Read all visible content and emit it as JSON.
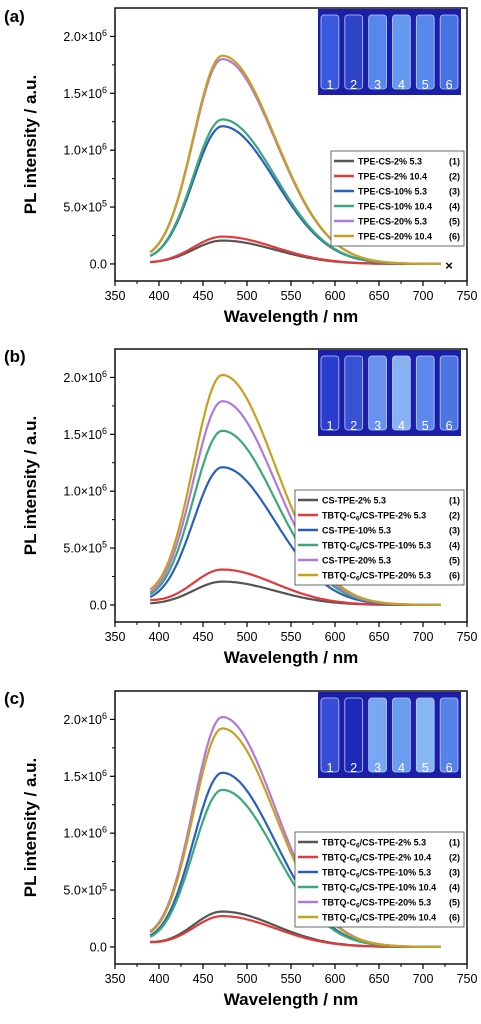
{
  "chart_data": [
    {
      "type": "line",
      "panel_label": "(a)",
      "xlabel": "Wavelength / nm",
      "ylabel": "PL intensity / a.u.",
      "xlim": [
        350,
        750
      ],
      "ylim": [
        -150000,
        2250000
      ],
      "x_ticks": [
        "350",
        "400",
        "450",
        "500",
        "550",
        "600",
        "650",
        "700",
        "750"
      ],
      "y_ticks": [
        {
          "value": 0,
          "label": "0.0"
        },
        {
          "value": 500000,
          "label": "5.0x10^5"
        },
        {
          "value": 1000000,
          "label": "1.0x10^6"
        },
        {
          "value": 1500000,
          "label": "1.5x10^6"
        },
        {
          "value": 2000000,
          "label": "2.0x10^6"
        }
      ],
      "inset_labels": [
        "1",
        "2",
        "3",
        "4",
        "5",
        "6"
      ],
      "annotation": "×",
      "series": [
        {
          "name": "TPE-CS-2% 5.3",
          "index": "(1)",
          "color": "#555555",
          "peak": 205000,
          "base": 8000
        },
        {
          "name": "TPE-CS-2% 10.4",
          "index": "(2)",
          "color": "#e03a3a",
          "peak": 240000,
          "base": 4000
        },
        {
          "name": "TPE-CS-10% 5.3",
          "index": "(3)",
          "color": "#2b5fbd",
          "peak": 1210000,
          "base": 15000
        },
        {
          "name": "TPE-CS-10% 10.4",
          "index": "(4)",
          "color": "#3aa87a",
          "peak": 1270000,
          "base": 12000
        },
        {
          "name": "TPE-CS-20% 5.3",
          "index": "(5)",
          "color": "#b07ad8",
          "peak": 1800000,
          "base": 20000
        },
        {
          "name": "TPE-CS-20% 10.4",
          "index": "(6)",
          "color": "#c8a020",
          "peak": 1830000,
          "base": 22000
        }
      ]
    },
    {
      "type": "line",
      "panel_label": "(b)",
      "xlabel": "Wavelength / nm",
      "ylabel": "PL intensity / a.u.",
      "xlim": [
        350,
        750
      ],
      "ylim": [
        -150000,
        2250000
      ],
      "x_ticks": [
        "350",
        "400",
        "450",
        "500",
        "550",
        "600",
        "650",
        "700",
        "750"
      ],
      "y_ticks": [
        {
          "value": 0,
          "label": "0.0"
        },
        {
          "value": 500000,
          "label": "5.0x10^5"
        },
        {
          "value": 1000000,
          "label": "1.0x10^6"
        },
        {
          "value": 1500000,
          "label": "1.5x10^6"
        },
        {
          "value": 2000000,
          "label": "2.0x10^6"
        }
      ],
      "inset_labels": [
        "1",
        "2",
        "3",
        "4",
        "5",
        "6"
      ],
      "series": [
        {
          "name": "CS-TPE-2% 5.3",
          "index": "(1)",
          "color": "#555555",
          "peak": 205000,
          "base": 5000
        },
        {
          "name": "TBTQ-C6/CS-TPE-2% 5.3",
          "index": "(2)",
          "color": "#e03a3a",
          "peak": 310000,
          "base": 30000
        },
        {
          "name": "CS-TPE-10% 5.3",
          "index": "(3)",
          "color": "#2b5fbd",
          "peak": 1210000,
          "base": 15000
        },
        {
          "name": "TBTQ-C6/CS-TPE-10% 5.3",
          "index": "(4)",
          "color": "#3aa87a",
          "peak": 1530000,
          "base": 25000
        },
        {
          "name": "CS-TPE-20% 5.3",
          "index": "(5)",
          "color": "#b07ad8",
          "peak": 1790000,
          "base": 30000
        },
        {
          "name": "TBTQ-C6/CS-TPE-20% 5.3",
          "index": "(6)",
          "color": "#c8a020",
          "peak": 2020000,
          "base": 45000
        }
      ]
    },
    {
      "type": "line",
      "panel_label": "(c)",
      "xlabel": "Wavelength / nm",
      "ylabel": "PL intensity / a.u.",
      "xlim": [
        350,
        750
      ],
      "ylim": [
        -150000,
        2250000
      ],
      "x_ticks": [
        "350",
        "400",
        "450",
        "500",
        "550",
        "600",
        "650",
        "700",
        "750"
      ],
      "y_ticks": [
        {
          "value": 0,
          "label": "0.0"
        },
        {
          "value": 500000,
          "label": "5.0x10^5"
        },
        {
          "value": 1000000,
          "label": "1.0x10^6"
        },
        {
          "value": 1500000,
          "label": "1.5x10^6"
        },
        {
          "value": 2000000,
          "label": "2.0x10^6"
        }
      ],
      "inset_labels": [
        "1",
        "2",
        "3",
        "4",
        "5",
        "6"
      ],
      "series": [
        {
          "name": "TBTQ-C6/CS-TPE-2% 5.3",
          "index": "(1)",
          "color": "#555555",
          "peak": 310000,
          "base": 30000
        },
        {
          "name": "TBTQ-C6/CS-TPE-2% 10.4",
          "index": "(2)",
          "color": "#e03a3a",
          "peak": 270000,
          "base": 30000
        },
        {
          "name": "TBTQ-C6/CS-TPE-10% 5.3",
          "index": "(3)",
          "color": "#2b5fbd",
          "peak": 1530000,
          "base": 30000
        },
        {
          "name": "TBTQ-C6/CS-TPE-10% 10.4",
          "index": "(4)",
          "color": "#3aa87a",
          "peak": 1380000,
          "base": 25000
        },
        {
          "name": "TBTQ-C6/CS-TPE-20% 5.3",
          "index": "(5)",
          "color": "#b07ad8",
          "peak": 2020000,
          "base": 45000
        },
        {
          "name": "TBTQ-C6/CS-TPE-20% 10.4",
          "index": "(6)",
          "color": "#c8a020",
          "peak": 1920000,
          "base": 40000
        }
      ]
    }
  ]
}
